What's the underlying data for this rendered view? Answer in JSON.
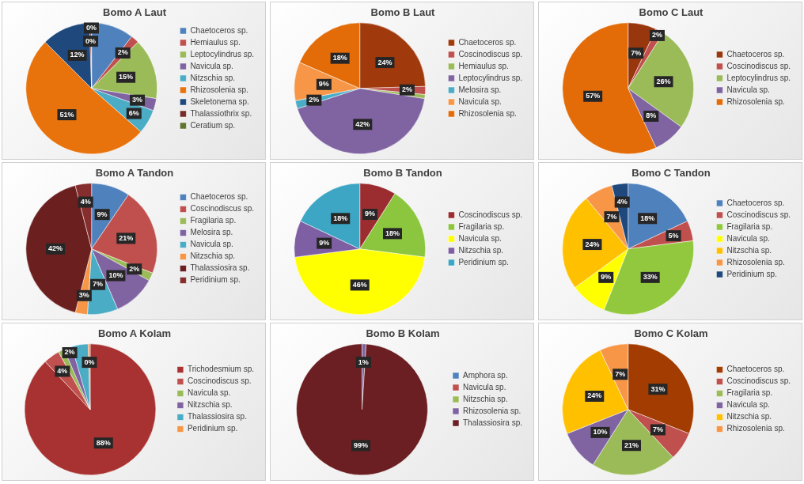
{
  "chart_data": [
    {
      "type": "pie",
      "title": "Bomo A Laut",
      "legend": "right",
      "categories": [
        "Chaetoceros sp.",
        "Hemiaulus sp.",
        "Leptocylindrus sp.",
        "Navicula sp.",
        "Nitzschia sp.",
        "Rhizosolenia sp.",
        "Skeletonema sp.",
        "Thalassiothrix sp.",
        "Ceratium sp."
      ],
      "values": [
        10.5,
        2,
        15,
        3,
        6,
        51,
        12,
        0.4,
        0.1
      ],
      "colors": [
        "#4f81bd",
        "#c0504d",
        "#9bbb59",
        "#8064a2",
        "#4bacc6",
        "#e8730c",
        "#1f497d",
        "#772c2a",
        "#5f7530"
      ],
      "value_labels": [
        null,
        "2%",
        "15%",
        "3%",
        "6%",
        "51%",
        "12%",
        "0%",
        "0%"
      ]
    },
    {
      "type": "pie",
      "title": "Bomo B Laut",
      "legend": "right",
      "categories": [
        "Chaetoceros sp.",
        "Coscinodiscus sp.",
        "Hemiaulus sp.",
        "Leptocylindrus sp.",
        "Melosira sp.",
        "Navicula sp.",
        "Rhizosolenia sp."
      ],
      "values": [
        24.5,
        2,
        1,
        42.5,
        2,
        9.5,
        18.5
      ],
      "colors": [
        "#a0390c",
        "#c0504d",
        "#9bbb59",
        "#8064a2",
        "#4bacc6",
        "#f79646",
        "#e36c09"
      ],
      "value_labels": [
        "24%",
        "2%",
        null,
        "42%",
        "2%",
        "9%",
        "18%"
      ]
    },
    {
      "type": "pie",
      "title": "Bomo C Laut",
      "legend": "right",
      "categories": [
        "Chaetoceros sp.",
        "Coscinodiscus sp.",
        "Leptocylindrus sp.",
        "Navicula sp.",
        "Rhizosolenia sp."
      ],
      "values": [
        7,
        2,
        26,
        8,
        57
      ],
      "colors": [
        "#98360d",
        "#c0504d",
        "#9bbb59",
        "#8064a2",
        "#e36c09"
      ],
      "value_labels": [
        "7%",
        "2%",
        "26%",
        "8%",
        "57%"
      ]
    },
    {
      "type": "pie",
      "title": "Bomo A Tandon",
      "legend": "right",
      "categories": [
        "Chaetoceros sp.",
        "Coscinodiscus sp.",
        "Fragilaria sp.",
        "Melosira sp.",
        "Navicula sp.",
        "Nitzschia sp.",
        "Thalassiosira sp.",
        "Peridinium sp."
      ],
      "values": [
        9.5,
        21.5,
        2,
        10.5,
        7.5,
        3,
        42,
        4
      ],
      "colors": [
        "#4f81bd",
        "#c0504d",
        "#9bbb59",
        "#8064a2",
        "#4bacc6",
        "#f79646",
        "#6b1f1f",
        "#862d2d"
      ],
      "value_labels": [
        "9%",
        "21%",
        "2%",
        "10%",
        "7%",
        "3%",
        "42%",
        "4%"
      ]
    },
    {
      "type": "pie",
      "title": "Bomo B Tandon",
      "legend": "right",
      "categories": [
        "Coscinodiscus sp.",
        "Fragilaria sp.",
        "Navicula sp.",
        "Nitzschia sp.",
        "Peridinium sp."
      ],
      "values": [
        9,
        18,
        46,
        9,
        18
      ],
      "colors": [
        "#9b2d30",
        "#8cc63f",
        "#ffff00",
        "#7f5fa3",
        "#3ca6c4"
      ],
      "value_labels": [
        "9%",
        "18%",
        "46%",
        "9%",
        "18%"
      ]
    },
    {
      "type": "pie",
      "title": "Bomo C Tandon",
      "legend": "right",
      "categories": [
        "Chaetoceros sp.",
        "Coscinodiscus sp.",
        "Fragilaria sp.",
        "Navicula sp.",
        "Nitzschia sp.",
        "Rhizosolenia sp.",
        "Peridinium sp."
      ],
      "values": [
        18,
        5,
        33,
        9,
        24,
        7,
        4
      ],
      "colors": [
        "#4f81bd",
        "#c0504d",
        "#92c83e",
        "#ffff00",
        "#ffc000",
        "#f79646",
        "#1f497d"
      ],
      "value_labels": [
        "18%",
        "5%",
        "33%",
        "9%",
        "24%",
        "7%",
        "4%"
      ]
    },
    {
      "type": "pie",
      "title": "Bomo A Kolam",
      "legend": "right",
      "categories": [
        "Trichodesmium sp.",
        "Coscinodiscus sp.",
        "Navicula sp.",
        "Nitzschia sp.",
        "Thalassiosira sp.",
        "Peridinium sp."
      ],
      "values": [
        88,
        4,
        1.5,
        2,
        4,
        0.5
      ],
      "colors": [
        "#a83232",
        "#c0504d",
        "#9bbb59",
        "#8064a2",
        "#4bacc6",
        "#f79646"
      ],
      "value_labels": [
        "88%",
        "4%",
        null,
        "2%",
        null,
        "0%"
      ]
    },
    {
      "type": "pie",
      "title": "Bomo B Kolam",
      "legend": "right",
      "categories": [
        "Amphora sp.",
        "Navicula sp.",
        "Nitzschia sp.",
        "Rhizosolenia sp.",
        "Thalassiosira sp."
      ],
      "values": [
        0,
        0,
        0,
        1,
        99
      ],
      "colors": [
        "#4f81bd",
        "#c0504d",
        "#9bbb59",
        "#8064a2",
        "#6b1f22"
      ],
      "value_labels": [
        null,
        null,
        null,
        "1%",
        "99%"
      ]
    },
    {
      "type": "pie",
      "title": "Bomo C Kolam",
      "legend": "right",
      "categories": [
        "Chaetoceros sp.",
        "Coscinodiscus sp.",
        "Fragilaria sp.",
        "Navicula sp.",
        "Nitzschia sp.",
        "Rhizosolenia sp."
      ],
      "values": [
        31,
        7,
        21,
        10,
        24,
        7
      ],
      "colors": [
        "#a33c00",
        "#c0504d",
        "#9bbb59",
        "#8064a2",
        "#ffc000",
        "#f79646"
      ],
      "value_labels": [
        "31%",
        "7%",
        "21%",
        "10%",
        "24%",
        "7%"
      ]
    }
  ]
}
